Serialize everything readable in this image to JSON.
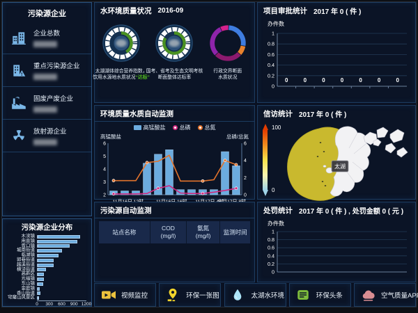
{
  "sidebar": {
    "title": "污染源企业",
    "items": [
      {
        "icon": "building-icon",
        "label": "企业总数"
      },
      {
        "icon": "warning-building-icon",
        "label": "重点污染源企业"
      },
      {
        "icon": "factory-icon",
        "label": "固废产废企业"
      },
      {
        "icon": "radiation-icon",
        "label": "放射源企业"
      }
    ]
  },
  "distribution": {
    "title": "污染源企业分布"
  },
  "water_quality": {
    "title": "水环境质量状况",
    "date": "2016-09",
    "gauges": [
      {
        "type": "gauge",
        "arc_start_deg": 0,
        "arc_sweep_deg": 150,
        "arc_color": "#4a9122",
        "lines": [
          "太湖湖体综合营养指数，",
          "饮用水源地水质状况"
        ],
        "status": "“达标”",
        "status_color": "#52bd1f"
      },
      {
        "type": "gauge",
        "arc_start_deg": 0,
        "arc_sweep_deg": 300,
        "arc_color": "#4a9122",
        "lines": [
          "国考、省考及生态文明考核",
          "断面整体达标率"
        ]
      },
      {
        "type": "donut",
        "start_deg": -25,
        "segments": [
          {
            "name": "pink-segment",
            "color": "#d4218c",
            "pct": 8
          },
          {
            "name": "blue-segment",
            "color": "#3f7de0",
            "pct": 27
          },
          {
            "name": "orange-segment",
            "color": "#e8822d",
            "pct": 9
          },
          {
            "name": "magenta-segment",
            "color": "#8c1a6e",
            "pct": 26
          },
          {
            "name": "purple-segment",
            "color": "#8e24aa",
            "pct": 30
          }
        ],
        "lines": [
          "行政交界断面",
          "水质状况"
        ]
      }
    ]
  },
  "auto_monitor": {
    "title": "环境质量水质自动监测",
    "left_axis_label": "高锰酸盐",
    "right_axis_label": "总磷/总氮"
  },
  "pollution_table": {
    "title": "污染源自动监测",
    "headers": [
      {
        "line1": "站点名称",
        "line2": ""
      },
      {
        "line1": "COD",
        "line2": "(mg/l)"
      },
      {
        "line1": "氨氮",
        "line2": "(mg/l)"
      },
      {
        "line1": "监测时间",
        "line2": ""
      }
    ]
  },
  "approval": {
    "title": "项目审批统计",
    "period": "2017 年 0 ( 件 )",
    "ylabel": "办件数"
  },
  "petition": {
    "title": "信访统计",
    "period": "2017 年 0 ( 件 )",
    "scale_max": "100",
    "scale_min": "0",
    "map_label": "太湖"
  },
  "penalty": {
    "title": "处罚统计",
    "period": "2017 年 0 ( 件 ) , 处罚金额 0 ( 元 )",
    "ylabel": "办件数"
  },
  "buttons": [
    {
      "icon": "video-icon",
      "label": "视频监控"
    },
    {
      "icon": "map-pin-icon",
      "label": "环保一张图"
    },
    {
      "icon": "water-drop-icon",
      "label": "太湖水环境"
    },
    {
      "icon": "news-icon",
      "label": "环保头条"
    },
    {
      "icon": "cloud-icon",
      "label": "空气质量APP"
    }
  ],
  "chart_data": [
    {
      "id": "pollution-source-distribution",
      "type": "bar",
      "orientation": "horizontal",
      "title": "污染源企业分布",
      "categories": [
        "木渎镇",
        "甪直镇",
        "胥口镇",
        "城南街道",
        "临湖镇",
        "郭巷街道",
        "越溪街道",
        "横泾街道",
        "高新区",
        "光福镇",
        "东山镇",
        "金庭镇",
        "香山街道",
        "穹窿山风景区"
      ],
      "values": [
        1050,
        980,
        780,
        600,
        520,
        400,
        390,
        210,
        160,
        150,
        140,
        55,
        75,
        25
      ],
      "xlim": [
        0,
        1200
      ],
      "xticks": [
        0,
        300,
        600,
        900,
        1200
      ],
      "bar_color": "#6cacdf"
    },
    {
      "id": "water-quality-auto-monitor",
      "type": "combo",
      "x_labels": [
        "11月16日 12时",
        "11月16日 16时",
        "11月17日 4时",
        "11月17日 8时"
      ],
      "left_ylim": [
        2,
        6
      ],
      "left_yticks": [
        2,
        3,
        4,
        5,
        6
      ],
      "right_ylim": [
        0,
        6
      ],
      "right_yticks": [
        0,
        2,
        4,
        6
      ],
      "left_axis_label": "高锰酸盐",
      "right_axis_label": "总磷/总氮",
      "series": [
        {
          "name": "高锰酸盐",
          "type": "bar",
          "axis": "left",
          "color": "#6cacdf",
          "values": [
            2.3,
            2.3,
            2.3,
            4.45,
            5.15,
            5.5,
            2.4,
            2.4,
            2.4,
            2.4,
            5.35,
            4.25
          ]
        },
        {
          "name": "总磷",
          "type": "line",
          "axis": "right",
          "color": "#cf2a7f",
          "values": [
            0.1,
            0.1,
            0.1,
            0.15,
            0.75,
            1.05,
            0.2,
            0.15,
            0.15,
            0.3,
            0.5,
            0.75
          ],
          "marker_indices": [
            0,
            4,
            8,
            11
          ]
        },
        {
          "name": "总氮",
          "type": "line",
          "axis": "right",
          "color": "#e2732c",
          "values": [
            1.65,
            1.65,
            1.65,
            3.75,
            3.9,
            4.6,
            1.6,
            1.6,
            1.6,
            1.75,
            4.0,
            3.5
          ],
          "marker_indices": [
            0,
            3,
            8,
            10,
            11
          ]
        }
      ]
    },
    {
      "id": "approval-stats",
      "type": "line",
      "title": "项目审批统计",
      "ylabel": "办件数",
      "values": [
        0,
        0,
        0,
        0,
        0,
        0,
        0
      ],
      "ylim": [
        0,
        1
      ],
      "yticks": [
        0,
        0.2,
        0.4,
        0.6,
        0.8,
        1
      ],
      "show_zero_labels": true
    },
    {
      "id": "penalty-stats",
      "type": "line",
      "title": "处罚统计",
      "ylabel": "办件数",
      "values": [],
      "ylim": [
        0,
        1
      ],
      "yticks": [
        0,
        0.2,
        0.4,
        0.6,
        0.8,
        1
      ]
    }
  ]
}
